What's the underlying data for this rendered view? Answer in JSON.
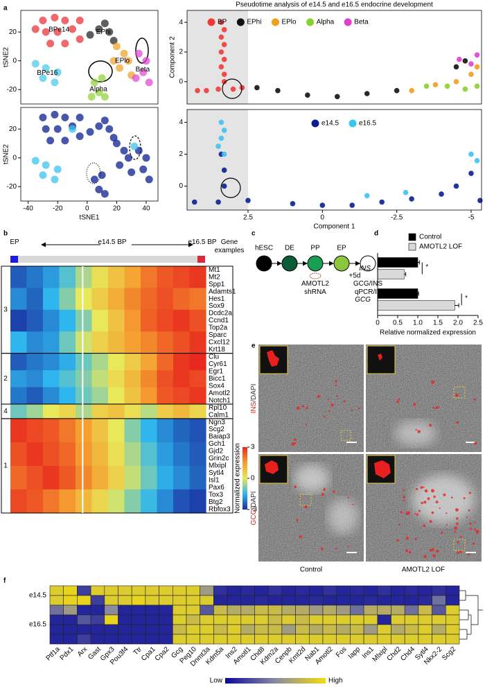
{
  "panel_labels": [
    "a",
    "b",
    "c",
    "d",
    "e",
    "f"
  ],
  "chart_data": [
    {
      "type": "scatter",
      "ylabel": "tSNE2",
      "xlim": [
        -45,
        48
      ],
      "ylim": [
        -30,
        35
      ],
      "yticks": [
        20,
        0,
        -20
      ],
      "series": [
        {
          "name": "BPe14",
          "color": "#e8282d",
          "x": [
            -30,
            -22,
            -15,
            -28,
            -20,
            -10,
            -5,
            -25,
            -15,
            -5,
            -35
          ],
          "values": [
            28,
            30,
            28,
            20,
            20,
            22,
            28,
            12,
            12,
            15,
            22
          ]
        },
        {
          "name": "EPhi",
          "color": "#1a1a1a",
          "x": [
            2,
            8,
            12,
            15,
            18
          ],
          "values": [
            18,
            22,
            26,
            20,
            14
          ]
        },
        {
          "name": "EPlo",
          "color": "#f0a020",
          "x": [
            20,
            25,
            28,
            22,
            30,
            18
          ],
          "values": [
            10,
            5,
            0,
            -5,
            -10,
            0
          ]
        },
        {
          "name": "Beta",
          "color": "#e040d0",
          "x": [
            35,
            40,
            38,
            42,
            33
          ],
          "values": [
            5,
            0,
            -8,
            -15,
            -12
          ]
        },
        {
          "name": "Alpha",
          "color": "#8ad030",
          "x": [
            5,
            10,
            8,
            12,
            3
          ],
          "values": [
            -15,
            -12,
            -22,
            -25,
            -25
          ]
        },
        {
          "name": "BPe16",
          "color": "#40c8e8",
          "x": [
            -35,
            -28,
            -20,
            -30,
            -22
          ],
          "values": [
            -2,
            -5,
            -8,
            -12,
            -15
          ]
        }
      ]
    },
    {
      "type": "scatter",
      "xlabel": "tSNE1",
      "ylabel": "tSNE2",
      "xlim": [
        -45,
        48
      ],
      "ylim": [
        -30,
        35
      ],
      "xticks": [
        -40,
        -20,
        0,
        20,
        40
      ],
      "yticks": [
        20,
        0,
        -20
      ],
      "series": [
        {
          "color": "#0a1f8f",
          "x": [
            -30,
            -22,
            -15,
            -28,
            -20,
            -10,
            -5,
            -25,
            -15,
            -5,
            2,
            8,
            12,
            15,
            18,
            20,
            25,
            28,
            22,
            30,
            35,
            40,
            38,
            42,
            5,
            10,
            8,
            12
          ],
          "values": [
            28,
            30,
            28,
            20,
            20,
            22,
            28,
            12,
            12,
            15,
            18,
            22,
            26,
            20,
            14,
            10,
            5,
            0,
            -5,
            -10,
            5,
            0,
            -8,
            -15,
            -15,
            -12,
            -22,
            -25
          ]
        },
        {
          "color": "#3cc3f0",
          "x": [
            -35,
            -28,
            -20,
            -30,
            -22,
            -10,
            32
          ],
          "values": [
            -2,
            -5,
            -8,
            -12,
            -15,
            20,
            8
          ]
        }
      ]
    },
    {
      "type": "scatter",
      "title": "Pseudotime analysis of e14.5 and e16.5 endocrine development",
      "ylabel": "Component 2",
      "xlim": [
        4.55,
        -5.35
      ],
      "ylim": [
        -1.5,
        4.8
      ],
      "yticks": [
        4,
        2,
        0
      ],
      "shade": [
        4.55,
        2.5
      ],
      "series": [
        {
          "name": "BP",
          "color": "#f03a3a",
          "x": [
            3.4,
            3.3,
            3.4,
            3.3,
            3.4,
            3.3,
            3.4,
            3.3,
            3.3,
            3.5,
            4.2,
            3.9,
            3.0,
            2.7
          ],
          "values": [
            4,
            3.5,
            3,
            2.5,
            2,
            1.5,
            1,
            0.5,
            0,
            -0.5,
            -0.6,
            -0.6,
            -0.5,
            -0.4
          ]
        },
        {
          "name": "EPhi",
          "color": "#111111",
          "x": [
            2.2,
            1.5,
            0.5,
            -0.5,
            -1.5,
            -2.5,
            -4.5,
            -4.8
          ],
          "values": [
            -0.4,
            -0.6,
            -0.9,
            -1,
            -0.8,
            -0.6,
            1.0,
            1.4
          ]
        },
        {
          "name": "EPlo",
          "color": "#f0a020",
          "x": [
            -3,
            -3.8,
            -4.5,
            -5,
            -5.2
          ],
          "values": [
            -0.6,
            -0.2,
            0,
            0.5,
            1.0
          ]
        },
        {
          "name": "Alpha",
          "color": "#8ad030",
          "x": [
            -3.5,
            -4.2,
            -4.8,
            -5.2
          ],
          "values": [
            -0.3,
            -0.3,
            -0.5,
            -0.3
          ]
        },
        {
          "name": "Beta",
          "color": "#e040d0",
          "x": [
            -4.6,
            -5,
            -5.2
          ],
          "values": [
            1.5,
            1.2,
            1.8
          ]
        }
      ]
    },
    {
      "type": "scatter",
      "xlabel": "Component 1",
      "xlim": [
        4.55,
        -5.35
      ],
      "ylim": [
        -1.5,
        4.8
      ],
      "xticks": [
        2.5,
        0,
        -2.5,
        -5
      ],
      "yticks": [
        4,
        2,
        0
      ],
      "shade": [
        4.55,
        2.5
      ],
      "series": [
        {
          "name": "e14.5",
          "color": "#0a1f8f",
          "x": [
            4.3,
            3.5,
            3.3,
            3.3,
            3.4,
            2.5,
            1,
            0,
            -1,
            -2,
            -3,
            -4,
            -4.5,
            -5,
            -5.3
          ],
          "values": [
            -1,
            -1,
            0,
            1,
            2,
            -0.9,
            -1.1,
            -1.2,
            -1.2,
            -1,
            -0.8,
            -0.5,
            0,
            0.8,
            -0.9
          ]
        },
        {
          "name": "e16.5",
          "color": "#3cc3f0",
          "x": [
            3.4,
            3.3,
            3.4,
            3.5,
            3.3,
            -1.5,
            -2.8,
            -5,
            -5.2
          ],
          "values": [
            4,
            3.5,
            3,
            2.5,
            2,
            -0.6,
            -0.4,
            2,
            1.6
          ]
        }
      ]
    },
    {
      "type": "heatmap",
      "start_label": "EP",
      "mid_label": "e14.5 BP",
      "end_label": "e16.5 BP",
      "gene_header": "Gene examples",
      "colorbar_label": "Normalized expression",
      "clim": [
        -3,
        3
      ],
      "cticks": [
        3,
        0,
        -3
      ],
      "clusters": [
        {
          "label": "3",
          "genes": [
            "Mt1",
            "Mt2",
            "Spp1",
            "Adamts1",
            "Hes1",
            "Sox9",
            "Dcdc2a",
            "Ccnd1",
            "Top2a",
            "Sparc",
            "Cxcl12",
            "Krt18"
          ],
          "rows": [
            [
              -2.5,
              -2.2,
              -1.8,
              -1.2,
              -0.5,
              0.2,
              0.8,
              1.4,
              2,
              2.4,
              2.6,
              2.8
            ],
            [
              -2,
              -2.4,
              -1.5,
              -0.8,
              0,
              0.6,
              1.2,
              1.8,
              2.2,
              2.5,
              2.2,
              2
            ],
            [
              -2.8,
              -2.5,
              -2,
              -1.5,
              -0.8,
              0,
              0.8,
              1.6,
              2.3,
              2.6,
              2.8,
              2.5
            ],
            [
              -1.5,
              -2,
              -1.8,
              -1,
              -0.2,
              0.5,
              1,
              1.5,
              1.8,
              2.2,
              2.5,
              2.8
            ]
          ]
        },
        {
          "label": "2",
          "genes": [
            "Clu",
            "Cyr61",
            "Egr1",
            "Bicc1",
            "Sox4",
            "Amotl2",
            "Notch1"
          ],
          "rows": [
            [
              -2.5,
              -2.2,
              -2,
              -1.6,
              -1,
              -0.5,
              0,
              0.6,
              1.4,
              2.2,
              2.8,
              3
            ],
            [
              -1.8,
              -2,
              -1.5,
              -1.2,
              -0.8,
              -0.3,
              0.3,
              1,
              1.8,
              2.5,
              2.8,
              2.6
            ],
            [
              -2.2,
              -2.5,
              -2,
              -1.5,
              -1,
              -0.6,
              0,
              0.8,
              1.6,
              2.4,
              2.6,
              2.8
            ]
          ]
        },
        {
          "label": "4",
          "genes": [
            "Rpl10",
            "Calm1"
          ],
          "rows": [
            [
              -1,
              -0.6,
              0,
              0.4,
              -0.5,
              0.5,
              0.8,
              0.2,
              -0.4,
              0.6,
              1,
              0.4
            ]
          ]
        },
        {
          "label": "1",
          "genes": [
            "Ngn3",
            "Scg2",
            "Baiap3",
            "Gch1",
            "Gjd2",
            "Grin2c",
            "Mlxipl",
            "Sytl4",
            "Isl1",
            "Pax6",
            "Tox3",
            "Btg2",
            "Rbfox3"
          ],
          "rows": [
            [
              2.8,
              2.6,
              2.4,
              2,
              1.5,
              0.8,
              0,
              -0.8,
              -1.5,
              -2,
              -2.4,
              -2.6
            ],
            [
              2.5,
              2.8,
              2.5,
              2.2,
              1.6,
              1,
              0.2,
              -0.5,
              -1.2,
              -1.8,
              -2.2,
              -2.5
            ],
            [
              2.2,
              2.5,
              2.8,
              2.4,
              1.8,
              1.2,
              0.5,
              -0.3,
              -1,
              -1.6,
              -2,
              -2.4
            ],
            [
              2.6,
              2.4,
              2,
              1.6,
              1,
              0.4,
              -0.2,
              -0.8,
              -1.4,
              -2,
              -2.6,
              -2.8
            ]
          ]
        }
      ]
    },
    {
      "type": "hbar",
      "categories": [
        "INS",
        "GCG"
      ],
      "xlabel": "Relative normalized expression",
      "xlim": [
        0,
        2.5
      ],
      "xticks": [
        0,
        0.5,
        {
          "value": 1,
          "label": "1.0"
        },
        1.5,
        {
          "value": 2,
          "label": "2.0"
        },
        2.5
      ],
      "annotations": [
        "*",
        "*"
      ],
      "series": [
        {
          "name": "Control",
          "color": "#000000",
          "values": [
            1.0,
            1.0
          ],
          "errors": [
            0.04,
            0.02
          ]
        },
        {
          "name": "AMOTL2 LOF",
          "color": "#d9d9d9",
          "values": [
            0.66,
            1.92
          ],
          "errors": [
            0.04,
            0.1
          ]
        }
      ]
    },
    {
      "type": "heatmap",
      "clim": [
        0,
        1
      ],
      "colorbar_labels": [
        "Low",
        "High"
      ],
      "columns": [
        "Ptf1a",
        "Pdx1",
        "Arx",
        "Gast",
        "Gpx3",
        "Pou3f4",
        "Ttr",
        "Cpa1",
        "Cpa2",
        "Gcg",
        "Peg10",
        "Dnmt3a",
        "Kdm5a",
        "Ins2",
        "Amotl1",
        "Chd8",
        "Kdm2a",
        "Cenpb",
        "Kmt2d",
        "Nab1",
        "Amotl2",
        "Fos",
        "Iapp",
        "Ins1",
        "Mlxipl",
        "Chd2",
        "Chd4",
        "Sytl4",
        "Nkx2-2",
        "Scg2"
      ],
      "row_labels": [
        "e14.5",
        null,
        "e16.5",
        null,
        null,
        null
      ],
      "values": [
        [
          0.9,
          0.95,
          0.2,
          0.9,
          0.9,
          0.9,
          0.9,
          0.9,
          0.9,
          0.9,
          0.9,
          0.6,
          0.15,
          0.1,
          0.12,
          0.1,
          0.15,
          0.1,
          0.12,
          0.1,
          0.15,
          0.1,
          0.12,
          0.1,
          0.15,
          0.1,
          0.12,
          0.1,
          0.15,
          0.1
        ],
        [
          0.9,
          0.95,
          0.95,
          0.2,
          0.9,
          0.9,
          0.95,
          0.9,
          0.9,
          0.9,
          0.9,
          0.9,
          0.1,
          0.1,
          0.1,
          0.12,
          0.1,
          0.1,
          0.1,
          0.12,
          0.1,
          0.1,
          0.1,
          0.12,
          0.1,
          0.1,
          0.1,
          0.12,
          0.4,
          0.1
        ],
        [
          0.4,
          0.6,
          0.1,
          0.1,
          0.5,
          0.1,
          0.1,
          0.1,
          0.1,
          0.9,
          0.9,
          0.3,
          0.8,
          0.7,
          0.7,
          0.8,
          0.8,
          0.7,
          0.7,
          0.6,
          0.7,
          0.6,
          0.4,
          0.7,
          0.7,
          0.7,
          0.4,
          0.8,
          0.3,
          0.9
        ],
        [
          0.1,
          0.1,
          0.3,
          0.2,
          0.95,
          0.1,
          0.1,
          0.1,
          0.1,
          0.9,
          0.8,
          0.9,
          0.9,
          0.9,
          0.9,
          0.9,
          0.8,
          0.9,
          0.8,
          0.9,
          0.9,
          0.9,
          0.9,
          0.9,
          0.1,
          0.9,
          0.9,
          0.9,
          0.9,
          0.9
        ],
        [
          0.1,
          0.1,
          0.1,
          0.1,
          0.1,
          0.1,
          0.1,
          0.1,
          0.1,
          0.8,
          0.9,
          0.9,
          0.8,
          0.9,
          0.7,
          0.8,
          0.8,
          0.6,
          0.8,
          0.7,
          0.8,
          0.7,
          0.8,
          0.6,
          0.9,
          0.7,
          0.8,
          0.9,
          0.7,
          0.9
        ],
        [
          0.1,
          0.1,
          0.2,
          0.1,
          0.1,
          0.1,
          0.1,
          0.1,
          0.1,
          0.9,
          0.9,
          0.9,
          0.9,
          0.9,
          0.9,
          0.9,
          0.9,
          0.9,
          0.9,
          0.9,
          0.9,
          0.9,
          0.9,
          0.9,
          0.9,
          0.9,
          0.9,
          0.9,
          0.9,
          0.9
        ]
      ]
    }
  ],
  "diagram_c": {
    "nodes": [
      {
        "label": "hESC",
        "color": "#000000"
      },
      {
        "label": "DE",
        "color": "#0d5c38"
      },
      {
        "label": "PP",
        "color": "#1a9e52"
      },
      {
        "label": "EP",
        "color": "#8cc63f"
      },
      {
        "color": "#ffffff"
      }
    ],
    "interval": "+5d",
    "perturbation": "AMOTL2 shRNA",
    "readout": "GCG/INS qPCR/IF"
  },
  "panel_e": {
    "rows": [
      {
        "marker": "INS",
        "suffix": "/DAPI"
      },
      {
        "marker": "GCG",
        "suffix": "/DAPI"
      }
    ],
    "columns": [
      "Control",
      "AMOTL2 LOF"
    ]
  }
}
